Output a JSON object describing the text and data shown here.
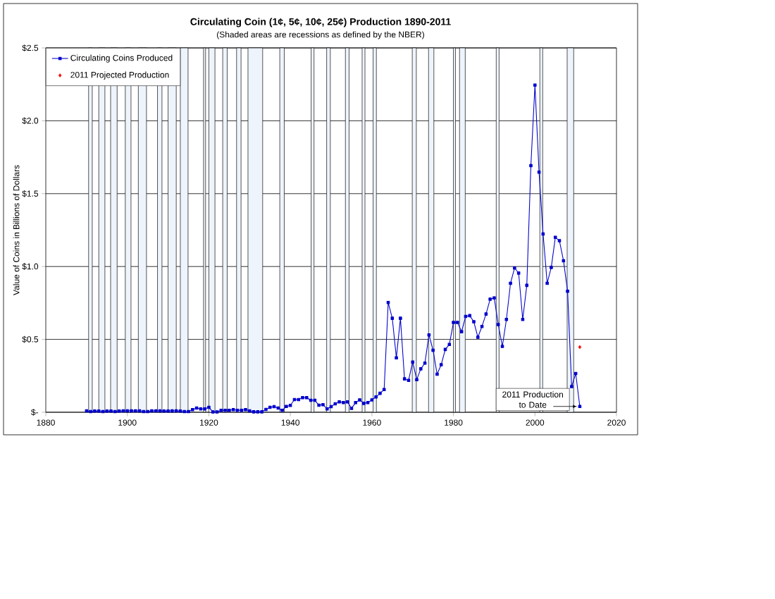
{
  "chart_data": {
    "type": "line",
    "title": "Circulating Coin (1¢, 5¢, 10¢, 25¢) Production 1890-2011",
    "subtitle": "(Shaded areas are recessions as defined by the NBER)",
    "ylabel": "Value of Coins in Billions of Dollars",
    "xlim": [
      1880,
      2020
    ],
    "xticks": [
      1880,
      1900,
      1920,
      1940,
      1960,
      1980,
      2000,
      2020
    ],
    "ylim": [
      0,
      2.5
    ],
    "yticks": [
      {
        "value": 0,
        "label": "$-"
      },
      {
        "value": 0.5,
        "label": "$0.5"
      },
      {
        "value": 1.0,
        "label": "$1.0"
      },
      {
        "value": 1.5,
        "label": "$1.5"
      },
      {
        "value": 2.0,
        "label": "$2.0"
      },
      {
        "value": 2.5,
        "label": "$2.5"
      }
    ],
    "grid": "y",
    "legend": "top left",
    "series": [
      {
        "name": "Circulating Coins Produced",
        "color": "#0000cc",
        "marker": "square",
        "x": [
          1890,
          1891,
          1892,
          1893,
          1894,
          1895,
          1896,
          1897,
          1898,
          1899,
          1900,
          1901,
          1902,
          1903,
          1904,
          1905,
          1906,
          1907,
          1908,
          1909,
          1910,
          1911,
          1912,
          1913,
          1914,
          1915,
          1916,
          1917,
          1918,
          1919,
          1920,
          1921,
          1922,
          1923,
          1924,
          1925,
          1926,
          1927,
          1928,
          1929,
          1930,
          1931,
          1932,
          1933,
          1934,
          1935,
          1936,
          1937,
          1938,
          1939,
          1940,
          1941,
          1942,
          1943,
          1944,
          1945,
          1946,
          1947,
          1948,
          1949,
          1950,
          1951,
          1952,
          1953,
          1954,
          1955,
          1956,
          1957,
          1958,
          1959,
          1960,
          1961,
          1962,
          1963,
          1964,
          1965,
          1966,
          1967,
          1968,
          1969,
          1970,
          1971,
          1972,
          1973,
          1974,
          1975,
          1976,
          1977,
          1978,
          1979,
          1980,
          1981,
          1982,
          1983,
          1984,
          1985,
          1986,
          1987,
          1988,
          1989,
          1990,
          1991,
          1992,
          1993,
          1994,
          1995,
          1996,
          1997,
          1998,
          1999,
          2000,
          2001,
          2002,
          2003,
          2004,
          2005,
          2006,
          2007,
          2008,
          2009,
          2010,
          2011
        ],
        "values": [
          0.01,
          0.005,
          0.008,
          0.008,
          0.005,
          0.008,
          0.008,
          0.005,
          0.008,
          0.01,
          0.01,
          0.01,
          0.01,
          0.01,
          0.005,
          0.005,
          0.01,
          0.01,
          0.01,
          0.008,
          0.008,
          0.01,
          0.01,
          0.008,
          0.005,
          0.005,
          0.018,
          0.029,
          0.023,
          0.023,
          0.034,
          0.002,
          0.002,
          0.013,
          0.013,
          0.013,
          0.018,
          0.013,
          0.013,
          0.018,
          0.01,
          0.003,
          0.003,
          0.003,
          0.019,
          0.034,
          0.039,
          0.029,
          0.013,
          0.04,
          0.047,
          0.087,
          0.087,
          0.1,
          0.1,
          0.082,
          0.082,
          0.048,
          0.052,
          0.023,
          0.039,
          0.058,
          0.071,
          0.066,
          0.071,
          0.027,
          0.066,
          0.085,
          0.061,
          0.066,
          0.085,
          0.105,
          0.13,
          0.156,
          0.753,
          0.645,
          0.374,
          0.645,
          0.229,
          0.219,
          0.345,
          0.224,
          0.298,
          0.337,
          0.531,
          0.426,
          0.261,
          0.326,
          0.431,
          0.465,
          0.616,
          0.616,
          0.553,
          0.658,
          0.663,
          0.621,
          0.515,
          0.589,
          0.674,
          0.776,
          0.785,
          0.602,
          0.452,
          0.637,
          0.885,
          0.99,
          0.955,
          0.637,
          0.871,
          1.692,
          2.245,
          1.648,
          1.223,
          0.885,
          0.994,
          1.2,
          1.177,
          1.04,
          0.831,
          0.176,
          0.266,
          0.04
        ]
      },
      {
        "name": "2011 Projected Production",
        "type": "scatter",
        "color": "#ff0000",
        "marker": "diamond",
        "x": [
          2011
        ],
        "values": [
          0.447
        ]
      }
    ],
    "bands": [
      {
        "axis": "x",
        "from": 1890.5,
        "to": 1891.4,
        "color": "#eef4fc"
      },
      {
        "axis": "x",
        "from": 1893.0,
        "to": 1894.5,
        "color": "#eef4fc"
      },
      {
        "axis": "x",
        "from": 1895.9,
        "to": 1897.5,
        "color": "#eef4fc"
      },
      {
        "axis": "x",
        "from": 1899.5,
        "to": 1900.9,
        "color": "#eef4fc"
      },
      {
        "axis": "x",
        "from": 1902.7,
        "to": 1904.7,
        "color": "#eef4fc"
      },
      {
        "axis": "x",
        "from": 1907.4,
        "to": 1908.5,
        "color": "#eef4fc"
      },
      {
        "axis": "x",
        "from": 1910.0,
        "to": 1912.0,
        "color": "#eef4fc"
      },
      {
        "axis": "x",
        "from": 1913.0,
        "to": 1914.9,
        "color": "#eef4fc"
      },
      {
        "axis": "x",
        "from": 1918.7,
        "to": 1919.2,
        "color": "#eef4fc"
      },
      {
        "axis": "x",
        "from": 1920.0,
        "to": 1921.5,
        "color": "#eef4fc"
      },
      {
        "axis": "x",
        "from": 1923.4,
        "to": 1924.5,
        "color": "#eef4fc"
      },
      {
        "axis": "x",
        "from": 1926.8,
        "to": 1927.9,
        "color": "#eef4fc"
      },
      {
        "axis": "x",
        "from": 1929.6,
        "to": 1933.2,
        "color": "#eef4fc"
      },
      {
        "axis": "x",
        "from": 1937.4,
        "to": 1938.5,
        "color": "#eef4fc"
      },
      {
        "axis": "x",
        "from": 1945.1,
        "to": 1945.8,
        "color": "#eef4fc"
      },
      {
        "axis": "x",
        "from": 1948.9,
        "to": 1949.8,
        "color": "#eef4fc"
      },
      {
        "axis": "x",
        "from": 1953.5,
        "to": 1954.4,
        "color": "#eef4fc"
      },
      {
        "axis": "x",
        "from": 1957.6,
        "to": 1958.3,
        "color": "#eef4fc"
      },
      {
        "axis": "x",
        "from": 1960.3,
        "to": 1961.1,
        "color": "#eef4fc"
      },
      {
        "axis": "x",
        "from": 1969.9,
        "to": 1970.9,
        "color": "#eef4fc"
      },
      {
        "axis": "x",
        "from": 1973.9,
        "to": 1975.2,
        "color": "#eef4fc"
      },
      {
        "axis": "x",
        "from": 1980.0,
        "to": 1980.5,
        "color": "#eef4fc"
      },
      {
        "axis": "x",
        "from": 1981.5,
        "to": 1982.9,
        "color": "#eef4fc"
      },
      {
        "axis": "x",
        "from": 1990.5,
        "to": 1991.2,
        "color": "#eef4fc"
      },
      {
        "axis": "x",
        "from": 2001.2,
        "to": 2001.9,
        "color": "#eef4fc"
      },
      {
        "axis": "x",
        "from": 2007.9,
        "to": 2009.5,
        "color": "#eef4fc"
      }
    ],
    "annotations": [
      {
        "text": "2011 Production to Date",
        "x": 2011,
        "y": 0.04
      }
    ]
  }
}
